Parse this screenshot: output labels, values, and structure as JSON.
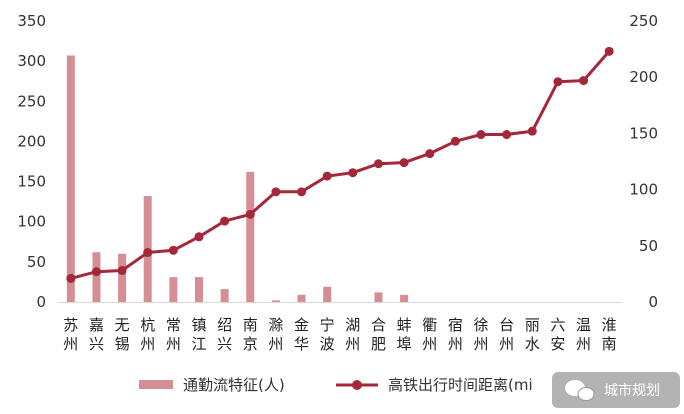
{
  "chart_data": {
    "type": "bar+line",
    "categories": [
      "苏州",
      "嘉兴",
      "无锡",
      "杭州",
      "常州",
      "镇江",
      "绍兴",
      "南京",
      "滁州",
      "金华",
      "宁波",
      "湖州",
      "合肥",
      "蚌埠",
      "衢州",
      "宿州",
      "徐州",
      "台州",
      "丽水",
      "六安",
      "温州",
      "淮南"
    ],
    "category_lines": [
      [
        "苏",
        "州"
      ],
      [
        "嘉",
        "兴"
      ],
      [
        "无",
        "锡"
      ],
      [
        "杭",
        "州"
      ],
      [
        "常",
        "州"
      ],
      [
        "镇",
        "江"
      ],
      [
        "绍",
        "兴"
      ],
      [
        "南",
        "京"
      ],
      [
        "滁",
        "州"
      ],
      [
        "金",
        "华"
      ],
      [
        "宁",
        "波"
      ],
      [
        "湖",
        "州"
      ],
      [
        "合",
        "肥"
      ],
      [
        "蚌",
        "埠"
      ],
      [
        "衢",
        "州"
      ],
      [
        "宿",
        "州"
      ],
      [
        "徐",
        "州"
      ],
      [
        "台",
        "州"
      ],
      [
        "丽",
        "水"
      ],
      [
        "六",
        "安"
      ],
      [
        "温",
        "州"
      ],
      [
        "淮",
        "南"
      ]
    ],
    "series": [
      {
        "name": "通勤流特征(人)",
        "type": "bar",
        "axis": "left",
        "color": "#d68e95",
        "values": [
          307,
          62,
          60,
          132,
          31,
          31,
          16,
          162,
          2,
          9,
          19,
          0,
          12,
          9,
          0,
          0,
          0,
          0,
          0,
          0,
          0,
          0
        ]
      },
      {
        "name": "高铁出行时间距离(mi",
        "type": "line",
        "axis": "right",
        "color": "#a5283a",
        "values": [
          21,
          27,
          28,
          44,
          46,
          58,
          72,
          78,
          98,
          98,
          112,
          115,
          123,
          124,
          132,
          143,
          149,
          149,
          152,
          196,
          197,
          223
        ]
      }
    ],
    "y_left": {
      "min": 0,
      "max": 350,
      "ticks": [
        0,
        50,
        100,
        150,
        200,
        250,
        300,
        350
      ]
    },
    "y_right": {
      "min": 0,
      "max": 250,
      "ticks": [
        0,
        50,
        100,
        150,
        200,
        250
      ]
    },
    "grid": false,
    "legend_position": "bottom"
  },
  "watermark": {
    "text": "城市规划",
    "icon": "wechat-icon"
  }
}
